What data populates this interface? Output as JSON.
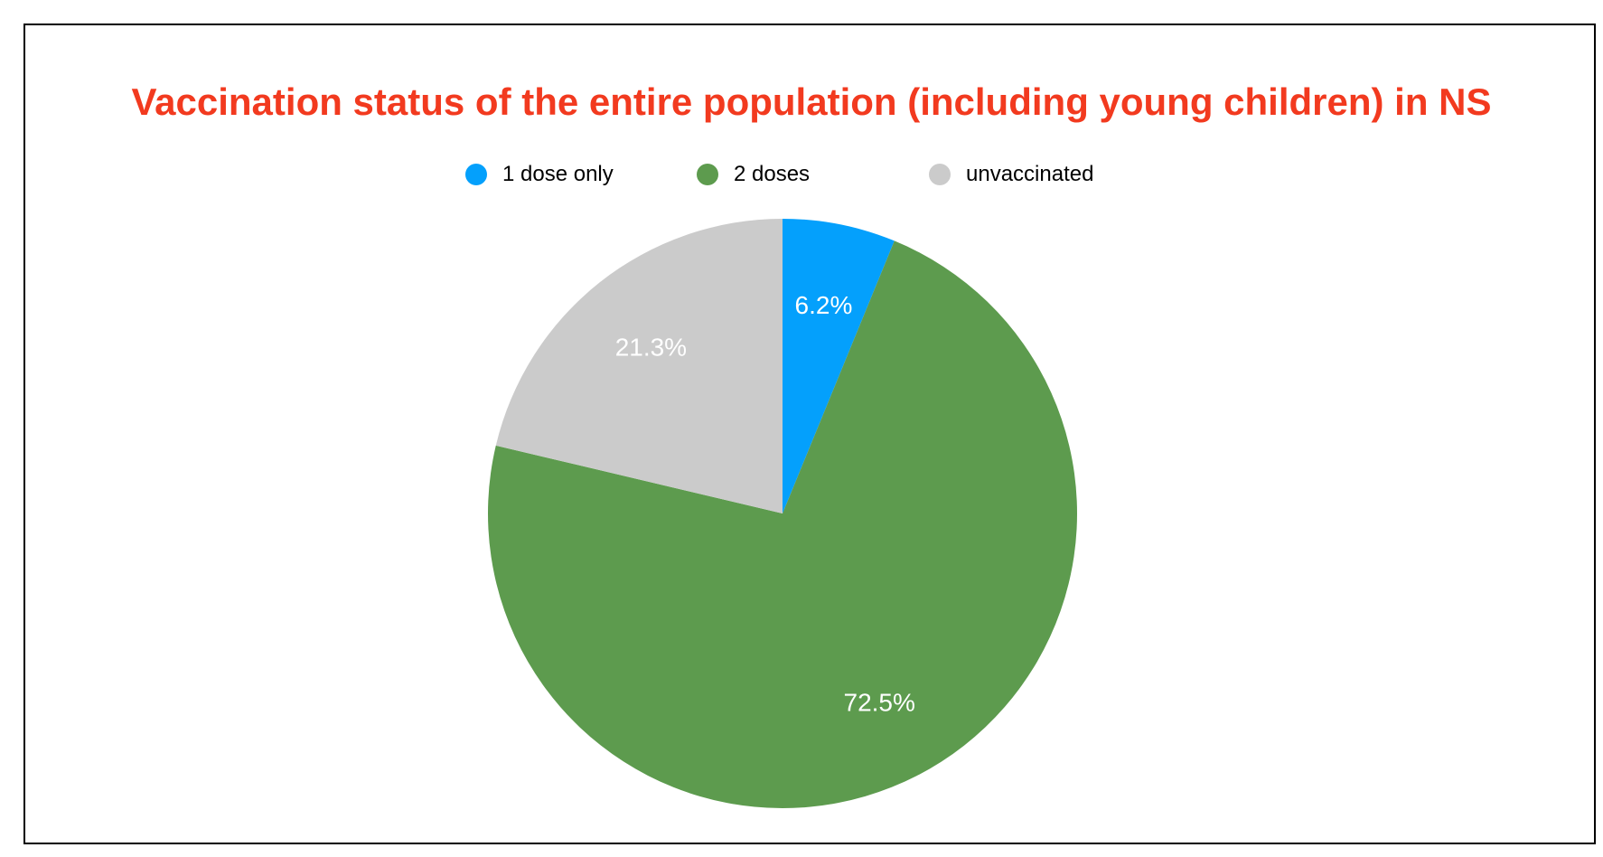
{
  "chart_data": {
    "type": "pie",
    "title": "Vaccination status of the entire population (including young children) in NS",
    "legend_position": "top",
    "slices": [
      {
        "name": "1 dose only",
        "value": 6.2,
        "label": "6.2%",
        "color": "#04a0fc"
      },
      {
        "name": "2 doses",
        "value": 72.5,
        "label": "72.5%",
        "color": "#5d9b4e"
      },
      {
        "name": "unvaccinated",
        "value": 21.3,
        "label": "21.3%",
        "color": "#cbcbcb"
      }
    ]
  }
}
